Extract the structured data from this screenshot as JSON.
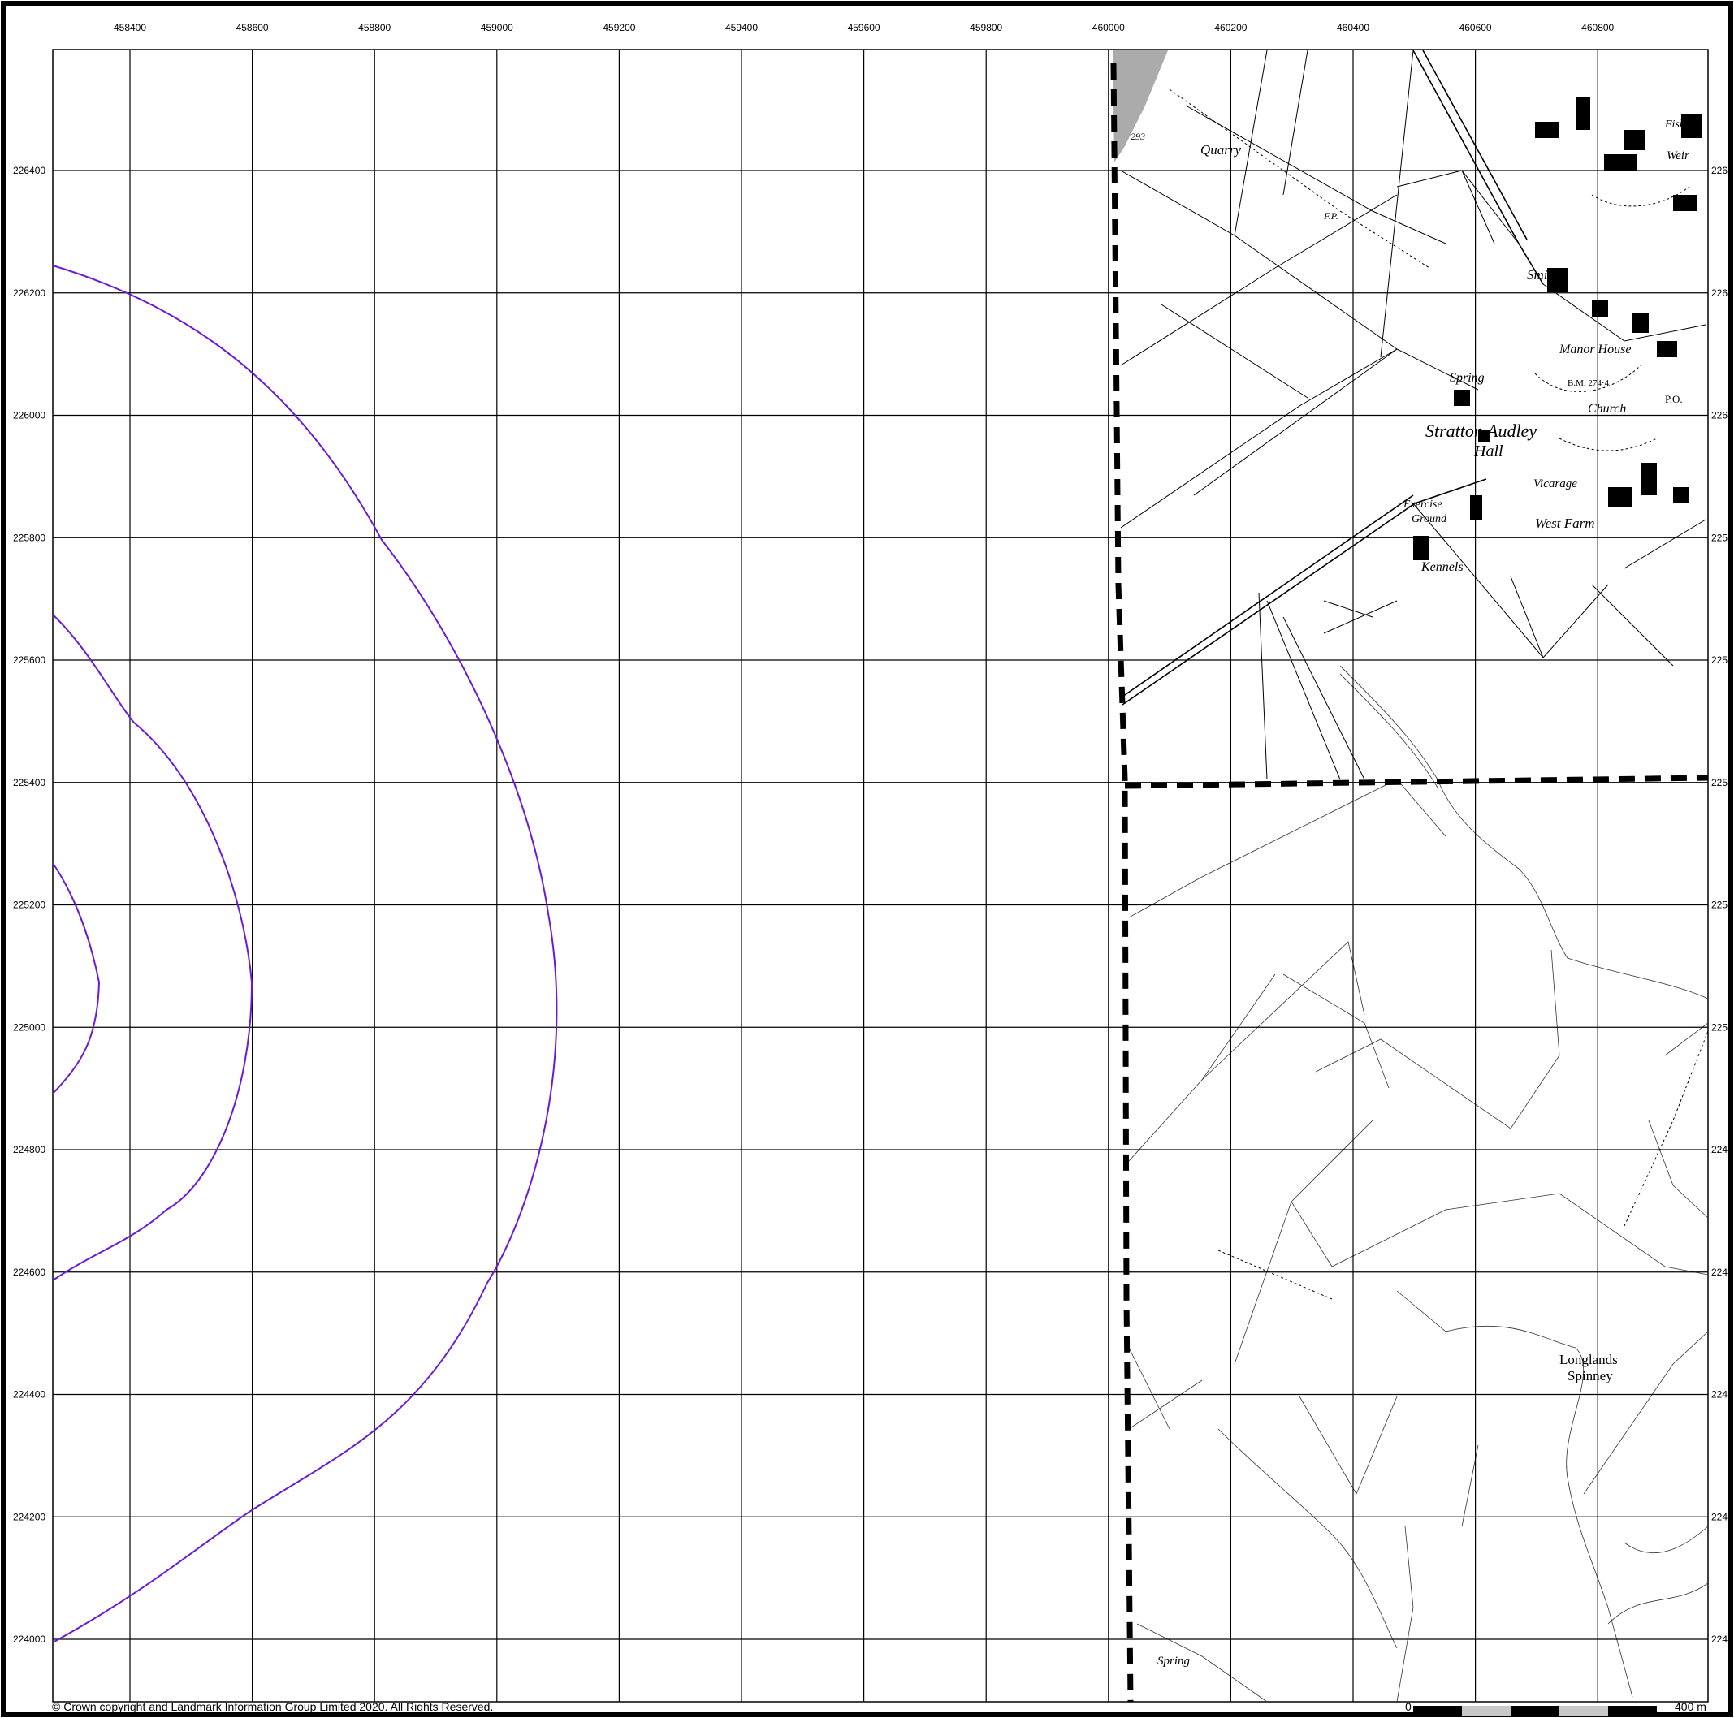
{
  "map": {
    "eastings": [
      "458400",
      "458600",
      "458800",
      "459000",
      "459200",
      "459400",
      "459600",
      "459800",
      "460000",
      "460200",
      "460400",
      "460600",
      "460800"
    ],
    "northings": [
      "226400",
      "226200",
      "226000",
      "225800",
      "225600",
      "225400",
      "225200",
      "225000",
      "224800",
      "224600",
      "224400",
      "224200",
      "224000"
    ],
    "northings_right_truncated": [
      "2264",
      "2262",
      "2260",
      "2258",
      "2256",
      "2254",
      "2252",
      "2250",
      "2248",
      "2246",
      "2244",
      "2242",
      "2240"
    ],
    "place_labels": {
      "quarry": "Quarry",
      "spot_height": "293",
      "fp": "F.P.",
      "smithy": "Smithy",
      "manor_house": "Manor House",
      "spring_north": "Spring",
      "church": "Church",
      "bm": "B.M. 274·4",
      "po": "P.O.",
      "stratton_audley": "Stratton Audley",
      "hall": "Hall",
      "exercise": "Exercise",
      "ground": "Ground",
      "vicarage": "Vicarage",
      "west_farm": "West Farm",
      "kennels": "Kennels",
      "fish_p": "Fish P",
      "weir": "Weir",
      "longlands": "Longlands",
      "spinney": "Spinney",
      "spring_south": "Spring"
    },
    "colors": {
      "buffer": "#6a1bd6",
      "grid": "#000000",
      "boundary": "#000000"
    }
  },
  "footer": {
    "copyright": "© Crown copyright and Landmark Information Group Limited 2020.  All Rights Reserved.",
    "scale_start": "0",
    "scale_end": "400 m"
  }
}
